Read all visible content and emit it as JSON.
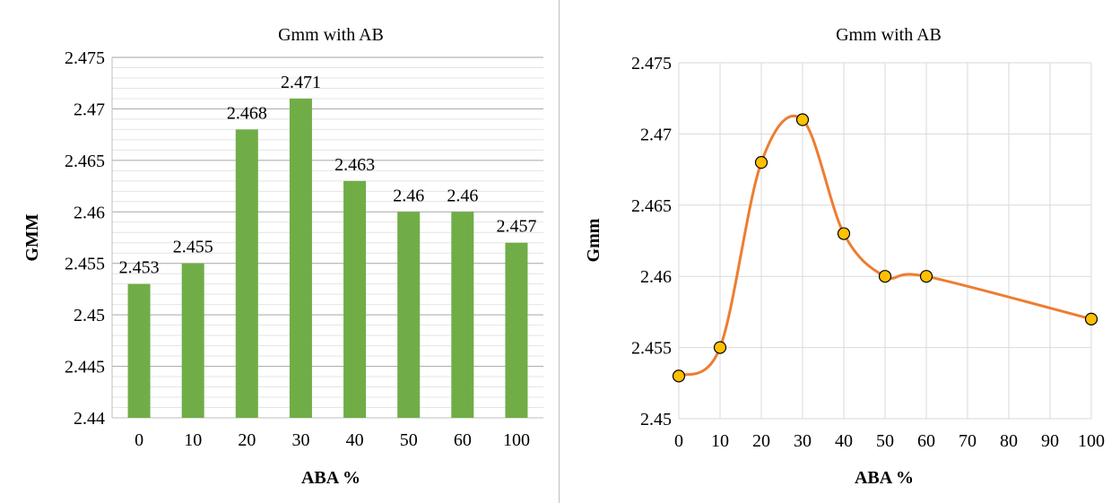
{
  "chart_data": [
    {
      "type": "bar",
      "title": "Gmm with AB",
      "xlabel": "ABA %",
      "ylabel": "GMM",
      "categories": [
        "0",
        "10",
        "20",
        "30",
        "40",
        "50",
        "60",
        "100"
      ],
      "values": [
        2.453,
        2.455,
        2.468,
        2.471,
        2.463,
        2.46,
        2.46,
        2.457
      ],
      "data_labels": [
        "2.453",
        "2.455",
        "2.468",
        "2.471",
        "2.463",
        "2.46",
        "2.46",
        "2.457"
      ],
      "ylim": [
        2.44,
        2.475
      ],
      "yticks": [
        "2.44",
        "2.445",
        "2.45",
        "2.455",
        "2.46",
        "2.465",
        "2.47",
        "2.475"
      ],
      "ytick_values": [
        2.44,
        2.445,
        2.45,
        2.455,
        2.46,
        2.465,
        2.47,
        2.475
      ],
      "minor_step": 0.001,
      "grid": true,
      "legend": "none",
      "bar_color": "#70ad47"
    },
    {
      "type": "scatter",
      "subtype": "smooth-line-with-markers",
      "title": "Gmm with AB",
      "xlabel": "ABA %",
      "ylabel": "Gmm",
      "x": [
        0,
        10,
        20,
        30,
        40,
        50,
        60,
        100
      ],
      "y": [
        2.453,
        2.455,
        2.468,
        2.471,
        2.463,
        2.46,
        2.46,
        2.457
      ],
      "xlim": [
        0,
        100
      ],
      "xticks": [
        "0",
        "10",
        "20",
        "30",
        "40",
        "50",
        "60",
        "70",
        "80",
        "90",
        "100"
      ],
      "xtick_values": [
        0,
        10,
        20,
        30,
        40,
        50,
        60,
        70,
        80,
        90,
        100
      ],
      "ylim": [
        2.45,
        2.475
      ],
      "yticks": [
        "2.45",
        "2.455",
        "2.46",
        "2.465",
        "2.47",
        "2.475"
      ],
      "ytick_values": [
        2.45,
        2.455,
        2.46,
        2.465,
        2.47,
        2.475
      ],
      "grid": true,
      "legend": "none",
      "line_color": "#ed7d31",
      "marker_color": "#ffc000"
    }
  ]
}
